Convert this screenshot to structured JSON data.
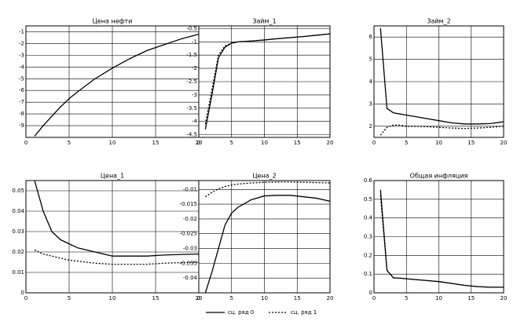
{
  "chart_data": [
    {
      "type": "line",
      "title": "Цена нефти",
      "x": [
        1,
        2,
        3,
        4,
        5,
        6,
        8,
        10,
        12,
        14,
        16,
        18,
        20
      ],
      "series": [
        {
          "color": "#000000",
          "dash": "solid",
          "values": [
            -9.9,
            -9.0,
            -8.2,
            -7.4,
            -6.7,
            -6.1,
            -5.0,
            -4.1,
            -3.3,
            -2.6,
            -2.1,
            -1.6,
            -1.2
          ]
        }
      ],
      "xlim": [
        0,
        20
      ],
      "xticks": [
        0,
        5,
        10,
        15,
        20
      ],
      "ylim": [
        -10,
        -0.5
      ],
      "yticks": [
        -9,
        -8,
        -7,
        -6,
        -5,
        -4,
        -3,
        -2,
        -1
      ],
      "grid": true
    },
    {
      "type": "line",
      "title": "Займ_1",
      "x": [
        1,
        2,
        3,
        4,
        5,
        6,
        8,
        10,
        12,
        14,
        16,
        18,
        20
      ],
      "series": [
        {
          "color": "#000000",
          "dash": "solid",
          "values": [
            -4.3,
            -3.0,
            -1.6,
            -1.2,
            -1.05,
            -1.0,
            -0.97,
            -0.93,
            -0.88,
            -0.84,
            -0.8,
            -0.75,
            -0.7
          ]
        },
        {
          "color": "#000000",
          "dash": "dotted",
          "values": [
            -4.1,
            -2.8,
            -1.5,
            -1.15,
            -1.05,
            -1.0,
            -0.97,
            -0.93,
            -0.88,
            -0.84,
            -0.8,
            -0.75,
            -0.7
          ]
        }
      ],
      "xlim": [
        0,
        20
      ],
      "xticks": [
        0,
        5,
        10,
        15,
        20
      ],
      "ylim": [
        -4.6,
        -0.4
      ],
      "yticks": [
        -4.5,
        -4,
        -3.5,
        -3,
        -2.5,
        -2,
        -1.5,
        -1,
        -0.5
      ],
      "grid": true
    },
    {
      "type": "line",
      "title": "Займ_2",
      "x": [
        1,
        2,
        3,
        4,
        5,
        6,
        8,
        10,
        12,
        14,
        16,
        18,
        20
      ],
      "series": [
        {
          "color": "#000000",
          "dash": "solid",
          "values": [
            6.4,
            2.8,
            2.6,
            2.55,
            2.5,
            2.45,
            2.35,
            2.25,
            2.15,
            2.1,
            2.1,
            2.12,
            2.2
          ]
        },
        {
          "color": "#000000",
          "dash": "dotted",
          "values": [
            1.6,
            1.95,
            2.05,
            2.05,
            2.0,
            2.0,
            1.98,
            1.95,
            1.92,
            1.9,
            1.92,
            1.95,
            2.0
          ]
        }
      ],
      "xlim": [
        0,
        20
      ],
      "xticks": [
        0,
        5,
        10,
        15,
        20
      ],
      "ylim": [
        1.5,
        6.5
      ],
      "yticks": [
        2,
        3,
        4,
        5,
        6
      ],
      "grid": true
    },
    {
      "type": "line",
      "title": "Цена_1",
      "x": [
        1,
        2,
        3,
        4,
        5,
        6,
        8,
        10,
        12,
        14,
        16,
        18,
        20
      ],
      "series": [
        {
          "color": "#000000",
          "dash": "solid",
          "values": [
            0.055,
            0.04,
            0.03,
            0.026,
            0.024,
            0.022,
            0.02,
            0.018,
            0.018,
            0.018,
            0.0185,
            0.0188,
            0.019
          ]
        },
        {
          "color": "#000000",
          "dash": "dotted",
          "values": [
            0.021,
            0.019,
            0.018,
            0.017,
            0.016,
            0.0155,
            0.0145,
            0.014,
            0.014,
            0.014,
            0.0145,
            0.0148,
            0.015
          ]
        }
      ],
      "xlim": [
        0,
        20
      ],
      "xticks": [
        0,
        5,
        10,
        15,
        20
      ],
      "ylim": [
        0,
        0.055
      ],
      "yticks": [
        0,
        0.01,
        0.02,
        0.03,
        0.04,
        0.05
      ],
      "grid": true
    },
    {
      "type": "line",
      "title": "Цена_2",
      "x": [
        1,
        2,
        3,
        4,
        5,
        6,
        8,
        10,
        12,
        14,
        16,
        18,
        20
      ],
      "series": [
        {
          "color": "#000000",
          "dash": "solid",
          "values": [
            -0.045,
            -0.038,
            -0.03,
            -0.022,
            -0.018,
            -0.016,
            -0.0135,
            -0.0122,
            -0.012,
            -0.012,
            -0.0125,
            -0.013,
            -0.014
          ]
        },
        {
          "color": "#000000",
          "dash": "dotted",
          "values": [
            -0.0125,
            -0.011,
            -0.0098,
            -0.009,
            -0.0085,
            -0.0082,
            -0.0078,
            -0.0076,
            -0.0075,
            -0.0075,
            -0.0076,
            -0.0077,
            -0.0078
          ]
        }
      ],
      "xlim": [
        0,
        20
      ],
      "xticks": [
        0,
        5,
        10,
        15,
        20
      ],
      "ylim": [
        -0.045,
        -0.007
      ],
      "yticks": [
        -0.04,
        -0.035,
        -0.03,
        -0.025,
        -0.02,
        -0.015,
        -0.01
      ],
      "grid": true
    },
    {
      "type": "line",
      "title": "Общая инфляция",
      "x": [
        1,
        2,
        3,
        4,
        5,
        6,
        8,
        10,
        12,
        14,
        16,
        18,
        20
      ],
      "series": [
        {
          "color": "#000000",
          "dash": "solid",
          "values": [
            0.55,
            0.12,
            0.08,
            0.078,
            0.075,
            0.072,
            0.066,
            0.06,
            0.05,
            0.04,
            0.033,
            0.03,
            0.03
          ]
        },
        {
          "color": "#000000",
          "dash": "dotted",
          "values": [
            0.52,
            0.12,
            0.08,
            0.078,
            0.075,
            0.072,
            0.066,
            0.06,
            0.05,
            0.04,
            0.033,
            0.03,
            0.03
          ]
        }
      ],
      "xlim": [
        0,
        20
      ],
      "xticks": [
        0,
        5,
        10,
        15,
        20
      ],
      "ylim": [
        0,
        0.6
      ],
      "yticks": [
        0,
        0.1,
        0.2,
        0.3,
        0.4,
        0.5,
        0.6
      ],
      "grid": true
    }
  ],
  "legend": {
    "entries": [
      {
        "label": "сц. ряд 0",
        "dash": "solid"
      },
      {
        "label": "сц. ряд 1",
        "dash": "dotted"
      }
    ]
  }
}
